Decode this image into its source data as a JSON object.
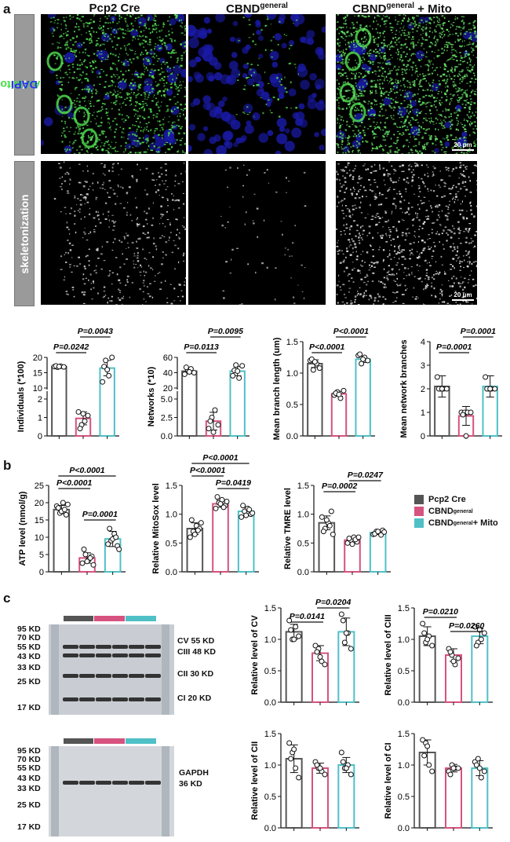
{
  "panels": {
    "a": "a",
    "b": "b",
    "c": "c"
  },
  "columns": {
    "c1": "Pcp2 Cre",
    "c2_main": "CBND",
    "c2_sup": "general",
    "c3_main": "CBND",
    "c3_sup": "general",
    "c3_tail": " + Mito"
  },
  "row_labels": {
    "aav_green": "AAV-Mito",
    "aav_slash": " / ",
    "aav_blue": "DAPI",
    "skeleton": "skeletonization"
  },
  "scale_bar": "20 μm",
  "colors": {
    "pcp2": "#555555",
    "cbnd": "#d6527f",
    "mito": "#4fc0c6"
  },
  "legend": [
    {
      "main": "Pcp2 Cre",
      "sup": "",
      "tail": "",
      "color": "#555555"
    },
    {
      "main": "CBND",
      "sup": "general",
      "tail": "",
      "color": "#d6527f"
    },
    {
      "main": "CBND",
      "sup": "general",
      "tail": " + Mito",
      "color": "#4fc0c6"
    }
  ],
  "chart_data": [
    {
      "id": "a1",
      "type": "bar",
      "ylabel": "Individuals (*100)",
      "axis_break": true,
      "yticks_lower": [
        "0",
        "1",
        "2"
      ],
      "yticks_upper": [
        "10",
        "15",
        "20"
      ],
      "values": [
        17,
        0.95,
        16.5
      ],
      "points": [
        [
          17,
          16.8,
          17.1,
          16.9,
          17.2,
          17
        ],
        [
          1.3,
          0.6,
          0.8,
          1.1,
          0.4,
          1.2
        ],
        [
          12,
          19,
          14,
          20,
          17,
          16
        ]
      ],
      "errors": [
        0.2,
        0.35,
        2.5
      ],
      "annotations": [
        {
          "text": "P=0.0242",
          "from": 0,
          "to": 1
        },
        {
          "text": "P=0.0043",
          "from": 1,
          "to": 2
        }
      ]
    },
    {
      "id": "a2",
      "type": "bar",
      "ylabel": "Networks (*10)",
      "axis_break": true,
      "yticks_lower": [
        "0.0",
        "2.5",
        "5.0"
      ],
      "yticks_upper": [
        "20",
        "40",
        "60"
      ],
      "values": [
        42,
        2,
        42
      ],
      "points": [
        [
          38,
          44,
          45,
          40,
          47,
          41
        ],
        [
          1,
          2.5,
          3.5,
          1.5,
          2,
          0.5
        ],
        [
          36,
          50,
          33,
          49,
          43,
          42
        ]
      ],
      "errors": [
        3,
        1.2,
        6
      ],
      "annotations": [
        {
          "text": "P=0.0113",
          "from": 0,
          "to": 1
        },
        {
          "text": "P=0.0095",
          "from": 1,
          "to": 2
        }
      ]
    },
    {
      "id": "a3",
      "type": "bar",
      "ylabel": "Mean branch length (um)",
      "ylim": [
        0,
        1.5
      ],
      "yticks": [
        "0.0",
        "0.5",
        "1.0",
        "1.5"
      ],
      "values": [
        1.15,
        0.67,
        1.22
      ],
      "points": [
        [
          1.2,
          1.05,
          1.15,
          1.08,
          1.22,
          1.18
        ],
        [
          0.65,
          0.7,
          0.6,
          0.72,
          0.68,
          0.66
        ],
        [
          1.28,
          1.15,
          1.25,
          1.2,
          1.3,
          1.22
        ]
      ],
      "errors": [
        0.06,
        0.04,
        0.05
      ],
      "annotations": [
        {
          "text": "P<0.0001",
          "from": 0,
          "to": 1
        },
        {
          "text": "P<0.0001",
          "from": 1,
          "to": 2
        }
      ]
    },
    {
      "id": "a4",
      "type": "bar",
      "ylabel": "Mean network branches",
      "ylim": [
        0,
        4
      ],
      "yticks": [
        "0",
        "1",
        "2",
        "3",
        "4"
      ],
      "values": [
        2.1,
        0.85,
        2.1
      ],
      "points": [
        [
          2.5,
          2,
          2,
          2,
          2,
          2
        ],
        [
          1,
          1,
          1,
          1,
          0.9,
          0
        ],
        [
          2.5,
          2,
          2,
          2,
          2,
          2
        ]
      ],
      "errors": [
        0.45,
        0.4,
        0.45
      ],
      "annotations": [
        {
          "text": "P=0.0001",
          "from": 0,
          "to": 1
        },
        {
          "text": "P=0.0001",
          "from": 1,
          "to": 2
        }
      ]
    },
    {
      "id": "b1",
      "type": "bar",
      "ylabel": "ATP level (nmol/g)",
      "ylim": [
        0,
        25
      ],
      "yticks": [
        "0",
        "5",
        "10",
        "15",
        "20",
        "25"
      ],
      "values": [
        18,
        4,
        9.5
      ],
      "points": [
        [
          19,
          17,
          20,
          16.5,
          18.5,
          17.5,
          18,
          19.5
        ],
        [
          2.5,
          5,
          3.5,
          4.5,
          6.5,
          3,
          4,
          2
        ],
        [
          8,
          9,
          11,
          7.5,
          12.5,
          9.5,
          10,
          6.5
        ]
      ],
      "errors": [
        1.2,
        1.5,
        2.2
      ],
      "annotations": [
        {
          "text": "P<0.0001",
          "from": 0,
          "to": 2
        },
        {
          "text": "P<0.0001",
          "from": 0,
          "to": 1
        },
        {
          "text": "P=0.0001",
          "from": 1,
          "to": 2
        }
      ]
    },
    {
      "id": "b2",
      "type": "bar",
      "ylabel": "Relative MitoSox level",
      "ylim": [
        0,
        1.5
      ],
      "yticks": [
        "0.0",
        "0.5",
        "1.0",
        "1.5"
      ],
      "values": [
        0.75,
        1.18,
        1.05
      ],
      "points": [
        [
          0.6,
          0.7,
          0.8,
          0.75,
          0.9,
          0.65,
          0.72,
          0.85
        ],
        [
          1.1,
          1.2,
          1.25,
          1.15,
          1.3,
          1.18,
          1.12,
          1.22
        ],
        [
          0.95,
          1.05,
          1.1,
          1.0,
          1.15,
          0.98,
          1.08,
          1.02
        ]
      ],
      "errors": [
        0.1,
        0.06,
        0.07
      ],
      "annotations": [
        {
          "text": "P<0.0001",
          "from": 0,
          "to": 2
        },
        {
          "text": "P<0.0001",
          "from": 0,
          "to": 1
        },
        {
          "text": "P=0.0419",
          "from": 1,
          "to": 2
        }
      ]
    },
    {
      "id": "b3",
      "type": "bar",
      "ylabel": "Relative TMRE level",
      "ylim": [
        0,
        1.5
      ],
      "yticks": [
        "0.0",
        "0.5",
        "1.0",
        "1.5"
      ],
      "values": [
        0.85,
        0.55,
        0.68
      ],
      "points": [
        [
          0.95,
          0.75,
          0.85,
          1.05,
          0.7,
          0.9,
          0.8,
          0.65
        ],
        [
          0.5,
          0.55,
          0.6,
          0.52,
          0.58,
          0.48,
          0.56,
          0.6
        ],
        [
          0.65,
          0.7,
          0.68,
          0.72,
          0.66,
          0.7,
          0.64,
          0.69
        ]
      ],
      "errors": [
        0.12,
        0.05,
        0.03
      ],
      "annotations": [
        {
          "text": "P=0.0002",
          "from": 0,
          "to": 1
        },
        {
          "text": "P=0.0247",
          "from": 1,
          "to": 2
        }
      ]
    },
    {
      "id": "c1",
      "type": "bar",
      "ylabel": "Relative level of CV",
      "ylim": [
        0,
        1.5
      ],
      "yticks": [
        "0.0",
        "0.5",
        "1.0",
        "1.5"
      ],
      "values": [
        1.12,
        0.78,
        1.12
      ],
      "points": [
        [
          1.3,
          1.0,
          1.2,
          1.05,
          1.15,
          1.0
        ],
        [
          0.9,
          0.85,
          0.65,
          0.6,
          0.8,
          0.72
        ],
        [
          1.4,
          0.95,
          1.1,
          0.85,
          1.3,
          1.1
        ]
      ],
      "errors": [
        0.12,
        0.12,
        0.22
      ],
      "annotations": [
        {
          "text": "P=0.0141",
          "from": 0,
          "to": 1
        },
        {
          "text": "P=0.0204",
          "from": 1,
          "to": 2
        }
      ]
    },
    {
      "id": "c2",
      "type": "bar",
      "ylabel": "Relative level of CIII",
      "ylim": [
        0,
        1.5
      ],
      "yticks": [
        "0.0",
        "0.5",
        "1.0",
        "1.5"
      ],
      "values": [
        1.05,
        0.75,
        1.05
      ],
      "points": [
        [
          1.25,
          0.95,
          1.05,
          0.9,
          1.1,
          1.0
        ],
        [
          0.85,
          0.75,
          0.6,
          0.7,
          0.8,
          0.65
        ],
        [
          1.2,
          0.95,
          1.0,
          1.1,
          0.9,
          1.15
        ]
      ],
      "errors": [
        0.15,
        0.1,
        0.12
      ],
      "annotations": [
        {
          "text": "P=0.0210",
          "from": 0,
          "to": 1
        },
        {
          "text": "P=0.0260",
          "from": 1,
          "to": 2
        }
      ]
    },
    {
      "id": "c3",
      "type": "bar",
      "ylabel": "Relative level of CII",
      "ylim": [
        0,
        1.5
      ],
      "yticks": [
        "0.0",
        "0.5",
        "1.0",
        "1.5"
      ],
      "values": [
        1.1,
        0.95,
        1.0
      ],
      "points": [
        [
          1.35,
          1.2,
          0.95,
          0.8,
          1.1,
          1.25
        ],
        [
          1.05,
          0.95,
          0.9,
          0.85,
          1.0,
          0.95
        ],
        [
          1.2,
          0.95,
          1.0,
          0.85,
          1.05,
          0.95
        ]
      ],
      "errors": [
        0.22,
        0.08,
        0.12
      ],
      "annotations": []
    },
    {
      "id": "c4",
      "type": "bar",
      "ylabel": "Relative level of CI",
      "ylim": [
        0,
        1.5
      ],
      "yticks": [
        "0.0",
        "0.5",
        "1.0",
        "1.5"
      ],
      "values": [
        1.2,
        0.95,
        0.95
      ],
      "points": [
        [
          1.4,
          1.35,
          1.0,
          0.9,
          1.15,
          1.3
        ],
        [
          0.9,
          1.0,
          0.95,
          0.95,
          0.85,
          0.95
        ],
        [
          1.05,
          1.1,
          0.8,
          0.9,
          1.0,
          0.95
        ]
      ],
      "errors": [
        0.2,
        0.06,
        0.12
      ],
      "annotations": []
    }
  ],
  "blots": {
    "top": {
      "markers": [
        "95 KD",
        "70 KD",
        "55 KD",
        "43 KD",
        "33 KD",
        "25 KD",
        "17 KD"
      ],
      "bands": [
        "CV 55 KD",
        "CIII 48 KD",
        "CII 30 KD",
        "CI 20 KD"
      ]
    },
    "bottom": {
      "markers": [
        "95 KD",
        "70 KD",
        "55 KD",
        "43 KD",
        "33 KD",
        "25 KD",
        "17 KD"
      ],
      "bands": [
        "GAPDH",
        "36 KD"
      ]
    }
  }
}
